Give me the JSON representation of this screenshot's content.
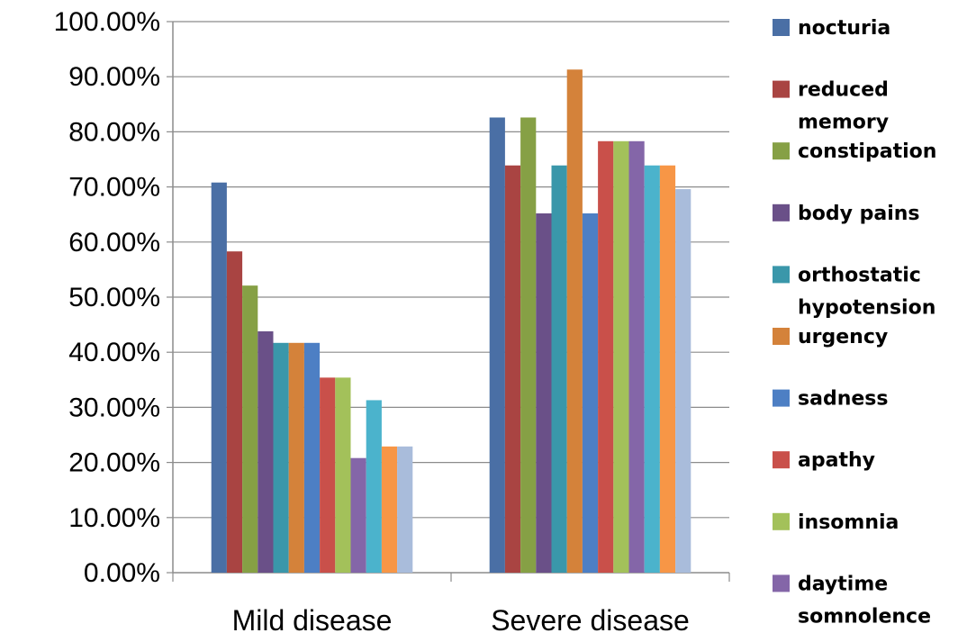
{
  "chart_data": {
    "type": "bar",
    "categories": [
      "Mild disease",
      "Severe disease"
    ],
    "y_tick_labels": [
      "0.00%",
      "10.00%",
      "20.00%",
      "30.00%",
      "40.00%",
      "50.00%",
      "60.00%",
      "70.00%",
      "80.00%",
      "90.00%",
      "100.00%"
    ],
    "ylim": [
      0,
      100
    ],
    "y_unit": "%",
    "grid": true,
    "legend_position": "right",
    "series": [
      {
        "name": "nocturia",
        "color": "#4a6fa5",
        "values": [
          70.8,
          82.6
        ]
      },
      {
        "name": "reduced memory",
        "color": "#a94442",
        "values": [
          58.3,
          73.9
        ]
      },
      {
        "name": "constipation",
        "color": "#86a045",
        "values": [
          52.1,
          82.6
        ]
      },
      {
        "name": "body pains",
        "color": "#6a5088",
        "values": [
          43.8,
          65.2
        ]
      },
      {
        "name": "orthostatic hypotension",
        "color": "#3a97aa",
        "values": [
          41.7,
          73.9
        ]
      },
      {
        "name": "urgency",
        "color": "#d4823a",
        "values": [
          41.7,
          91.3
        ]
      },
      {
        "name": "sadness",
        "color": "#4d7fc4",
        "values": [
          41.7,
          65.2
        ]
      },
      {
        "name": "apathy",
        "color": "#c9504a",
        "values": [
          35.4,
          78.3
        ]
      },
      {
        "name": "insomnia",
        "color": "#a3c15a",
        "values": [
          35.4,
          78.3
        ]
      },
      {
        "name": "daytime somnolence",
        "color": "#8466a8",
        "values": [
          20.8,
          78.3
        ]
      },
      {
        "name": "",
        "color": "#4bb3cc",
        "values": [
          31.3,
          73.9
        ]
      },
      {
        "name": "",
        "color": "#f79646",
        "values": [
          22.9,
          73.9
        ]
      },
      {
        "name": "",
        "color": "#a9bcdb",
        "values": [
          22.9,
          69.6
        ]
      }
    ]
  }
}
